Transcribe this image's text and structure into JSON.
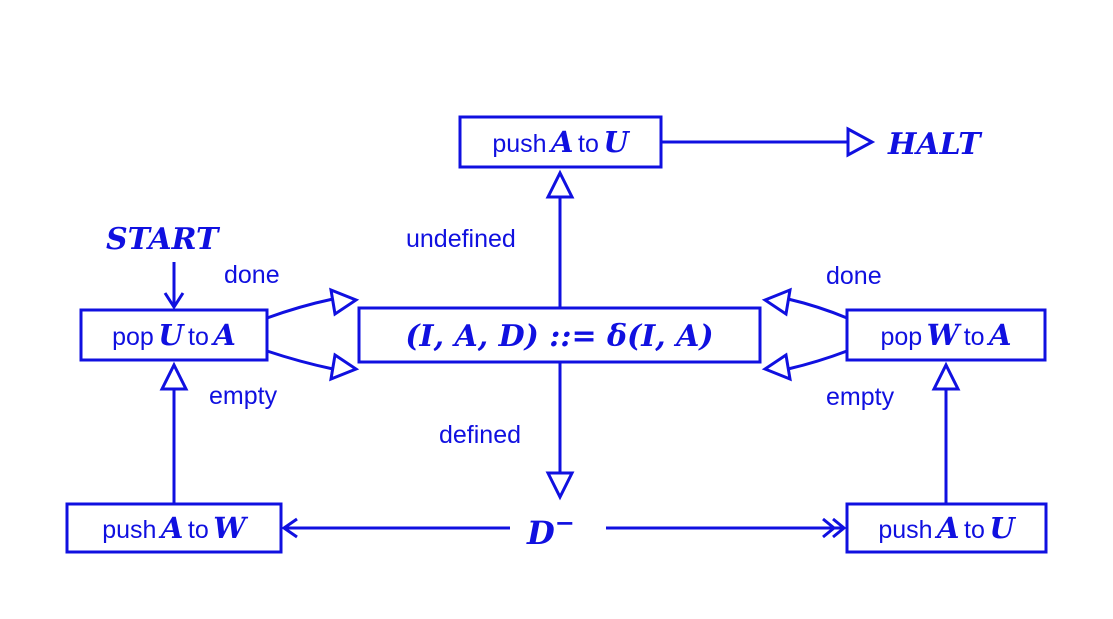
{
  "colors": {
    "ink": "#1010e0",
    "background": "#ffffff"
  },
  "nodes": {
    "push_a_u_top": {
      "word1": "push",
      "var1": "A",
      "word2": "to",
      "var2": "U"
    },
    "halt": "HALT",
    "start": "START",
    "pop_u_a": {
      "word1": "pop",
      "var1": "U",
      "word2": "to",
      "var2": "A"
    },
    "delta": "(I, A, D) ::= δ(I, A)",
    "pop_w_a": {
      "word1": "pop",
      "var1": "W",
      "word2": "to",
      "var2": "A"
    },
    "push_a_w": {
      "word1": "push",
      "var1": "A",
      "word2": "to",
      "var2": "W"
    },
    "d_minus": {
      "base": "D",
      "sup": "−"
    },
    "push_a_u_bottom": {
      "word1": "push",
      "var1": "A",
      "word2": "to",
      "var2": "U"
    }
  },
  "edge_labels": {
    "undefined": "undefined",
    "defined": "defined",
    "done_left": "done",
    "empty_left": "empty",
    "done_right": "done",
    "empty_right": "empty"
  }
}
